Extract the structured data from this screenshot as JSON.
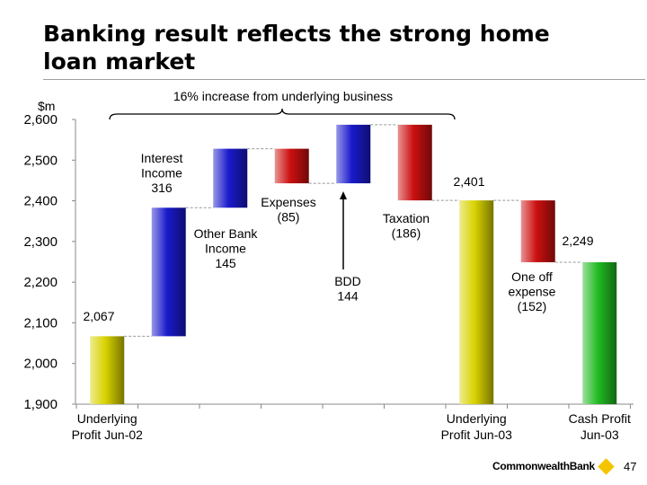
{
  "title": "Banking result reflects the strong home loan market",
  "brand": "CommonwealthBank",
  "page_number": "47",
  "colors": {
    "gold": "#d8d200",
    "blue": "#1a1acc",
    "red": "#cc1010",
    "green": "#22bb22",
    "logo": "#f5c400"
  },
  "chart_data": {
    "type": "bar",
    "subtype": "waterfall",
    "ylabel": "$m",
    "ylim": [
      1900,
      2600
    ],
    "yticks": [
      "1,900",
      "2,000",
      "2,100",
      "2,200",
      "2,300",
      "2,400",
      "2,500",
      "2,600"
    ],
    "brace_label": "16% increase from underlying business",
    "categories": [
      "Underlying Profit Jun-02",
      "Interest Income",
      "Other Bank Income",
      "Expenses",
      "BDD",
      "Taxation",
      "Underlying Profit Jun-03",
      "One off expense",
      "Cash Profit Jun-03"
    ],
    "bars": [
      {
        "category": "Underlying Profit Jun-02",
        "base": 1900,
        "top": 2067,
        "color": "gold",
        "label": "2,067"
      },
      {
        "category": "Interest Income",
        "base": 2067,
        "top": 2383,
        "color": "blue",
        "label": "Interest Income 316"
      },
      {
        "category": "Other Bank Income",
        "base": 2383,
        "top": 2528,
        "color": "blue",
        "label": "Other Bank Income 145"
      },
      {
        "category": "Expenses",
        "base": 2443,
        "top": 2528,
        "color": "red",
        "label": "Expenses (85)"
      },
      {
        "category": "BDD",
        "base": 2443,
        "top": 2587,
        "color": "blue",
        "label": "BDD 144"
      },
      {
        "category": "Taxation",
        "base": 2401,
        "top": 2587,
        "color": "red",
        "label": "Taxation (186)"
      },
      {
        "category": "Underlying Profit Jun-03",
        "base": 1900,
        "top": 2401,
        "color": "gold",
        "label": "2,401"
      },
      {
        "category": "One off expense",
        "base": 2249,
        "top": 2401,
        "color": "red",
        "label": "One off expense (152)"
      },
      {
        "category": "Cash Profit Jun-03",
        "base": 1900,
        "top": 2249,
        "color": "green",
        "label": "2,249"
      }
    ],
    "x_labels": [
      {
        "lines": [
          "Underlying",
          "Profit Jun-02"
        ]
      },
      {
        "lines": []
      },
      {
        "lines": []
      },
      {
        "lines": []
      },
      {
        "lines": []
      },
      {
        "lines": []
      },
      {
        "lines": [
          "Underlying",
          "Profit Jun-03"
        ]
      },
      {
        "lines": []
      },
      {
        "lines": [
          "Cash Profit",
          "Jun-03"
        ]
      }
    ],
    "annotations": [
      {
        "lines": [
          "Interest",
          "Income",
          "316"
        ]
      },
      {
        "lines": [
          "Other Bank",
          "Income",
          "145"
        ]
      },
      {
        "lines": [
          "Expenses",
          "(85)"
        ]
      },
      {
        "lines": [
          "BDD",
          "144"
        ]
      },
      {
        "lines": [
          "Taxation",
          "(186)"
        ]
      },
      {
        "lines": [
          "One off",
          "expense",
          "(152)"
        ]
      },
      {
        "lines": [
          "2,067"
        ]
      },
      {
        "lines": [
          "2,401"
        ]
      },
      {
        "lines": [
          "2,249"
        ]
      }
    ]
  }
}
